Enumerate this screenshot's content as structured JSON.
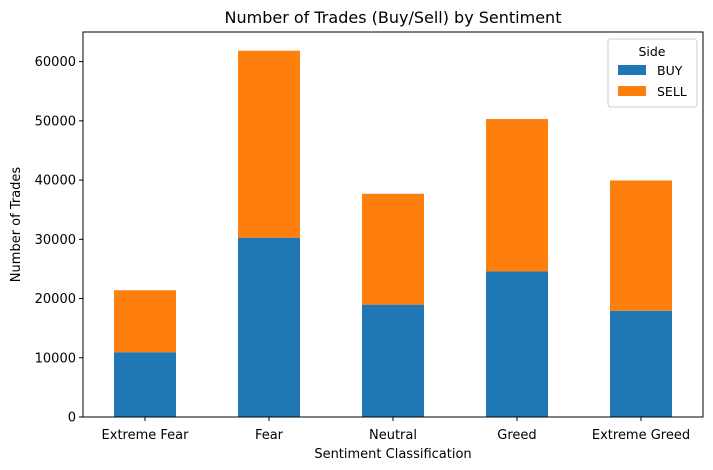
{
  "chart_data": {
    "type": "bar",
    "stacked": true,
    "title": "Number of Trades (Buy/Sell) by Sentiment",
    "xlabel": "Sentiment Classification",
    "ylabel": "Number of Trades",
    "categories": [
      "Extreme Fear",
      "Fear",
      "Neutral",
      "Greed",
      "Extreme Greed"
    ],
    "series": [
      {
        "name": "BUY",
        "values": [
          10935,
          30270,
          18969,
          24576,
          17940
        ],
        "color": "#1f77b4"
      },
      {
        "name": "SELL",
        "values": [
          10465,
          31567,
          18717,
          25727,
          21993
        ],
        "color": "#ff7f0e"
      }
    ],
    "ylim": [
      0,
      65000
    ],
    "yticks": [
      0,
      10000,
      20000,
      30000,
      40000,
      50000,
      60000
    ],
    "grid": false,
    "legend": {
      "title": "Side",
      "position": "top-right"
    }
  }
}
